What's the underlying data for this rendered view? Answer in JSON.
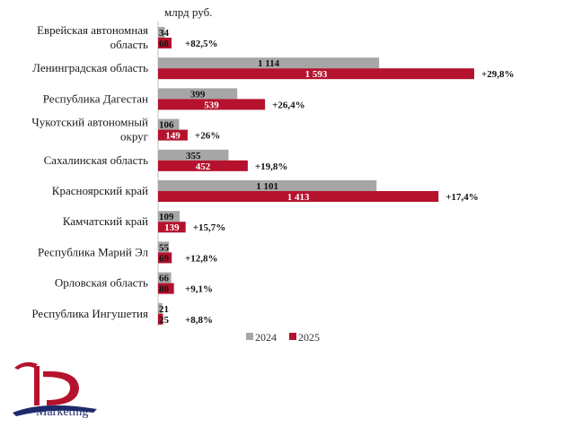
{
  "chart_data": {
    "type": "bar",
    "orientation": "horizontal",
    "unit_label": "млрд руб.",
    "categories": [
      [
        "Еврейская автономная",
        "область"
      ],
      [
        "Ленинградская область"
      ],
      [
        "Республика Дагестан"
      ],
      [
        "Чукотский автономный",
        "округ"
      ],
      [
        "Сахалинская  область"
      ],
      [
        "Красноярский край"
      ],
      [
        "Камчатский край"
      ],
      [
        "Республика Марий Эл"
      ],
      [
        "Орловская область"
      ],
      [
        "Республика Ингушетия"
      ]
    ],
    "series": [
      {
        "name": "2024",
        "color": "#a6a6a6",
        "values": [
          34,
          1114,
          399,
          106,
          355,
          1101,
          109,
          55,
          66,
          21
        ],
        "labels": [
          "34",
          "1 114",
          "399",
          "106",
          "355",
          "1 101",
          "109",
          "55",
          "66",
          "21"
        ]
      },
      {
        "name": "2025",
        "color": "#b5122e",
        "values": [
          68,
          1593,
          539,
          149,
          452,
          1413,
          139,
          69,
          80,
          25
        ],
        "labels": [
          "68",
          "1 593",
          "539",
          "149",
          "452",
          "1 413",
          "139",
          "69",
          "80",
          "25"
        ]
      }
    ],
    "growth_labels": [
      "+82,5%",
      "+29,8%",
      "+26,4%",
      "+26%",
      "+19,8%",
      "+17,4%",
      "+15,7%",
      "+12,8%",
      "+9,1%",
      "+8,8%"
    ],
    "legend_position": "bottom",
    "grid": false
  },
  "logo": {
    "text": "Marketing"
  }
}
